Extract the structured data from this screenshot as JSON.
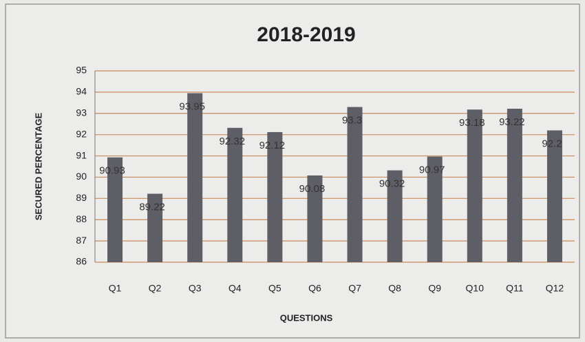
{
  "chart_data": {
    "type": "bar",
    "title": "2018-2019",
    "x_label": "QUESTIONS",
    "y_label": "SECURED PERCENTAGE",
    "categories": [
      "Q1",
      "Q2",
      "Q3",
      "Q4",
      "Q5",
      "Q6",
      "Q7",
      "Q8",
      "Q9",
      "Q10",
      "Q11",
      "Q12"
    ],
    "values": [
      90.93,
      89.22,
      93.95,
      92.32,
      92.12,
      90.08,
      93.3,
      90.32,
      90.97,
      93.18,
      93.22,
      92.2
    ],
    "color": "#5e5e66",
    "ylim": [
      86,
      95
    ],
    "yticks": [
      86,
      87,
      88,
      89,
      90,
      91,
      92,
      93,
      94,
      95
    ],
    "grid": true,
    "grid_color": "#c98a5a"
  }
}
